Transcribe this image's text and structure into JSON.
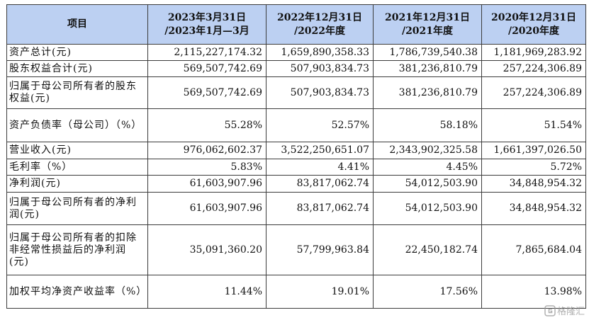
{
  "table": {
    "header": {
      "col0": "项目",
      "cols": [
        {
          "line1": "2023年3月31日",
          "line2": "/2023年1月—3月"
        },
        {
          "line1": "2022年12月31日",
          "line2": "/2022年度"
        },
        {
          "line1": "2021年12月31日",
          "line2": "/2021年度"
        },
        {
          "line1": "2020年12月31日",
          "line2": "/2020年度"
        }
      ]
    },
    "rows": [
      {
        "label": "资产总计(元)",
        "values": [
          "2,115,227,174.32",
          "1,659,890,358.33",
          "1,786,739,540.38",
          "1,181,969,283.92"
        ]
      },
      {
        "label": "股东权益合计(元)",
        "values": [
          "569,507,742.69",
          "507,903,834.73",
          "381,236,810.79",
          "257,224,306.89"
        ]
      },
      {
        "label": "归属于母公司所有者的股东权益(元)",
        "values": [
          "569,507,742.69",
          "507,903,834.73",
          "381,236,810.79",
          "257,224,306.89"
        ]
      },
      {
        "label": "资产负债率（母公司）（%）",
        "values": [
          "55.28%",
          "52.57%",
          "58.18%",
          "51.54%"
        ]
      },
      {
        "label": "营业收入(元)",
        "values": [
          "976,062,602.37",
          "3,522,250,651.07",
          "2,343,902,325.58",
          "1,661,397,026.50"
        ]
      },
      {
        "label": "毛利率（%）",
        "values": [
          "5.83%",
          "4.41%",
          "4.45%",
          "5.72%"
        ]
      },
      {
        "label": "净利润(元)",
        "values": [
          "61,603,907.96",
          "83,817,062.74",
          "54,012,503.90",
          "34,848,954.32"
        ]
      },
      {
        "label": "归属于母公司所有者的净利润(元)",
        "values": [
          "61,603,907.96",
          "83,817,062.74",
          "54,012,503.90",
          "34,848,954.32"
        ]
      },
      {
        "label": "归属于母公司所有者的扣除非经常性损益后的净利润(元)",
        "values": [
          "35,091,360.20",
          "57,799,963.84",
          "22,450,182.74",
          "7,865,684.04"
        ]
      },
      {
        "label": "加权平均净资产收益率（%）",
        "values": [
          "11.44%",
          "19.01%",
          "17.56%",
          "13.98%"
        ]
      }
    ]
  },
  "watermark": {
    "text": "格隆汇",
    "icon": "gelonghui-logo-icon"
  }
}
